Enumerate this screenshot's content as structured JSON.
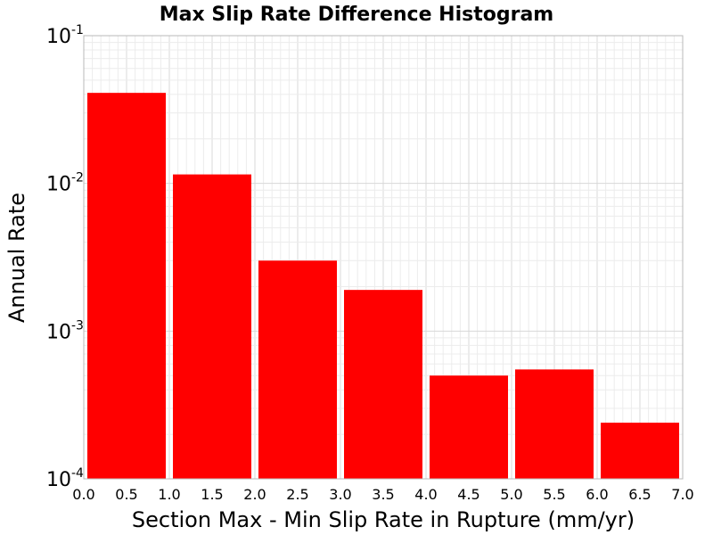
{
  "chart_data": {
    "type": "bar",
    "title": "Max Slip Rate Difference Histogram",
    "xlabel": "Section Max - Min Slip Rate in Rupture (mm/yr)",
    "ylabel": "Annual Rate",
    "xlim": [
      0.0,
      7.0
    ],
    "ylim": [
      0.0001,
      0.1
    ],
    "yscale": "log",
    "grid": true,
    "bar_color": "#ff0000",
    "x_ticks": [
      "0.0",
      "0.5",
      "1.0",
      "1.5",
      "2.0",
      "2.5",
      "3.0",
      "3.5",
      "4.0",
      "4.5",
      "5.0",
      "5.5",
      "6.0",
      "6.5",
      "7.0"
    ],
    "y_ticks": [
      {
        "base": "10",
        "exp": "-1",
        "value": 0.1
      },
      {
        "base": "10",
        "exp": "-2",
        "value": 0.01
      },
      {
        "base": "10",
        "exp": "-3",
        "value": 0.001
      },
      {
        "base": "10",
        "exp": "-4",
        "value": 0.0001
      }
    ],
    "bins": [
      {
        "x0": 0.0,
        "x1": 1.0,
        "value": 0.041
      },
      {
        "x0": 1.0,
        "x1": 2.0,
        "value": 0.0115
      },
      {
        "x0": 2.0,
        "x1": 3.0,
        "value": 0.003
      },
      {
        "x0": 3.0,
        "x1": 4.0,
        "value": 0.0019
      },
      {
        "x0": 4.0,
        "x1": 5.0,
        "value": 0.0005
      },
      {
        "x0": 5.0,
        "x1": 6.0,
        "value": 0.00055
      },
      {
        "x0": 6.0,
        "x1": 7.0,
        "value": 0.00024
      }
    ]
  }
}
